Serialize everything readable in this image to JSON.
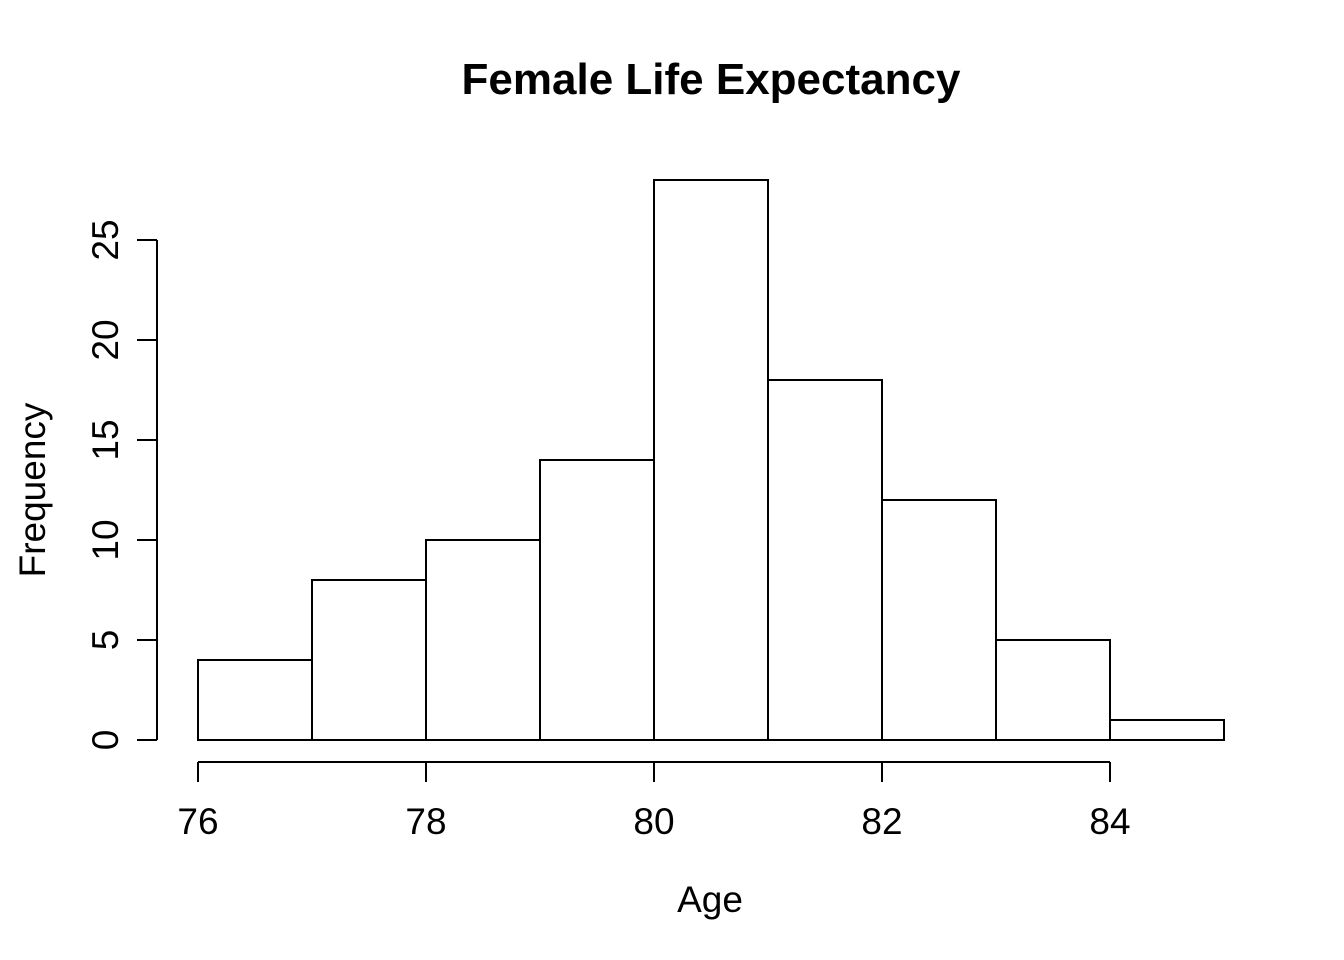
{
  "title": "Female Life Expectancy",
  "xlabel": "Age",
  "ylabel": "Frequency",
  "colors": {
    "background": "#ffffff",
    "foreground": "#000000",
    "bar_fill": "#ffffff",
    "bar_stroke": "#000000"
  },
  "chart_data": {
    "type": "bar",
    "subtype": "histogram",
    "title": "Female Life Expectancy",
    "xlabel": "Age",
    "ylabel": "Frequency",
    "bin_edges": [
      76,
      77,
      78,
      79,
      80,
      81,
      82,
      83,
      84,
      85
    ],
    "counts": [
      4,
      8,
      10,
      14,
      28,
      18,
      12,
      5,
      1
    ],
    "x_ticks": [
      76,
      78,
      80,
      82,
      84
    ],
    "y_ticks": [
      0,
      5,
      10,
      15,
      20,
      25
    ],
    "xlim": [
      76,
      85
    ],
    "ylim": [
      0,
      28
    ],
    "grid": false,
    "legend": false
  }
}
